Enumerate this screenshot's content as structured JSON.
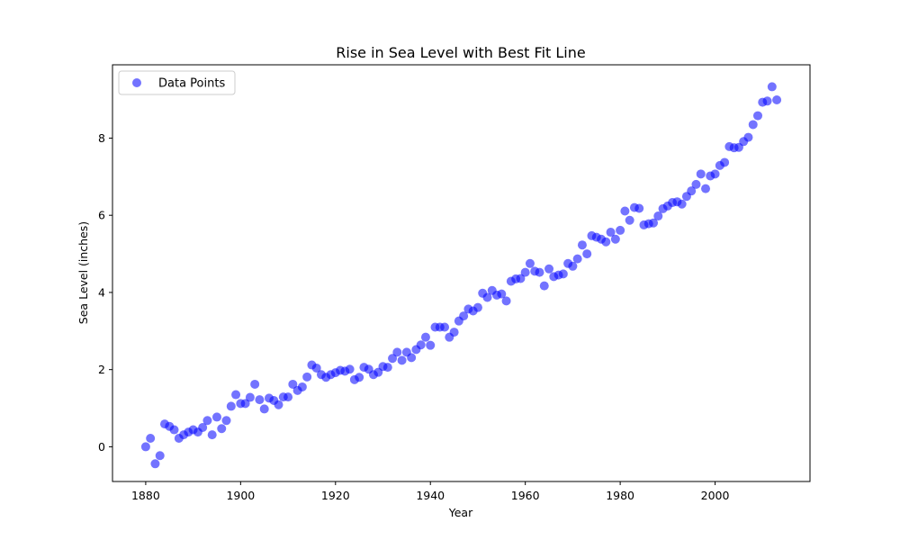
{
  "chart_data": {
    "type": "scatter",
    "title": "Rise in Sea Level with Best Fit Line",
    "xlabel": "Year",
    "ylabel": "Sea Level (inches)",
    "xlim": [
      1873,
      2020
    ],
    "ylim": [
      -0.9,
      9.9
    ],
    "xticks": [
      1880,
      1900,
      1920,
      1940,
      1960,
      1980,
      2000
    ],
    "yticks": [
      0,
      2,
      4,
      6,
      8
    ],
    "legend": {
      "position": "top-left"
    },
    "grid": false,
    "series": [
      {
        "name": "Data Points",
        "color": "#0000ff",
        "x": [
          1880,
          1881,
          1882,
          1883,
          1884,
          1885,
          1886,
          1887,
          1888,
          1889,
          1890,
          1891,
          1892,
          1893,
          1894,
          1895,
          1896,
          1897,
          1898,
          1899,
          1900,
          1901,
          1902,
          1903,
          1904,
          1905,
          1906,
          1907,
          1908,
          1909,
          1910,
          1911,
          1912,
          1913,
          1914,
          1915,
          1916,
          1917,
          1918,
          1919,
          1920,
          1921,
          1922,
          1923,
          1924,
          1925,
          1926,
          1927,
          1928,
          1929,
          1930,
          1931,
          1932,
          1933,
          1934,
          1935,
          1936,
          1937,
          1938,
          1939,
          1940,
          1941,
          1942,
          1943,
          1944,
          1945,
          1946,
          1947,
          1948,
          1949,
          1950,
          1951,
          1952,
          1953,
          1954,
          1955,
          1956,
          1957,
          1958,
          1959,
          1960,
          1961,
          1962,
          1963,
          1964,
          1965,
          1966,
          1967,
          1968,
          1969,
          1970,
          1971,
          1972,
          1973,
          1974,
          1975,
          1976,
          1977,
          1978,
          1979,
          1980,
          1981,
          1982,
          1983,
          1984,
          1985,
          1986,
          1987,
          1988,
          1989,
          1990,
          1991,
          1992,
          1993,
          1994,
          1995,
          1996,
          1997,
          1998,
          1999,
          2000,
          2001,
          2002,
          2003,
          2004,
          2005,
          2006,
          2007,
          2008,
          2009,
          2010,
          2011,
          2012,
          2013
        ],
        "y": [
          0.0,
          0.22,
          -0.44,
          -0.23,
          0.59,
          0.53,
          0.44,
          0.22,
          0.31,
          0.38,
          0.44,
          0.38,
          0.5,
          0.68,
          0.31,
          0.77,
          0.47,
          0.68,
          1.05,
          1.35,
          1.12,
          1.12,
          1.28,
          1.62,
          1.22,
          0.98,
          1.26,
          1.2,
          1.09,
          1.29,
          1.29,
          1.62,
          1.46,
          1.55,
          1.81,
          2.12,
          2.04,
          1.87,
          1.8,
          1.87,
          1.92,
          1.98,
          1.96,
          2.01,
          1.74,
          1.8,
          2.06,
          2.01,
          1.87,
          1.93,
          2.08,
          2.06,
          2.29,
          2.45,
          2.24,
          2.45,
          2.31,
          2.52,
          2.64,
          2.84,
          2.63,
          3.1,
          3.1,
          3.1,
          2.84,
          2.97,
          3.26,
          3.39,
          3.57,
          3.52,
          3.61,
          3.98,
          3.87,
          4.05,
          3.93,
          3.96,
          3.78,
          4.29,
          4.35,
          4.36,
          4.52,
          4.75,
          4.55,
          4.52,
          4.17,
          4.61,
          4.41,
          4.45,
          4.48,
          4.75,
          4.68,
          4.87,
          5.23,
          5.0,
          5.47,
          5.43,
          5.38,
          5.31,
          5.56,
          5.38,
          5.61,
          6.11,
          5.87,
          6.2,
          6.18,
          5.75,
          5.78,
          5.8,
          5.98,
          6.17,
          6.24,
          6.33,
          6.35,
          6.29,
          6.49,
          6.63,
          6.8,
          7.07,
          6.69,
          7.02,
          7.07,
          7.29,
          7.37,
          7.78,
          7.75,
          7.76,
          7.91,
          8.02,
          8.35,
          8.58,
          8.93,
          8.96,
          9.33,
          8.99
        ]
      }
    ]
  }
}
